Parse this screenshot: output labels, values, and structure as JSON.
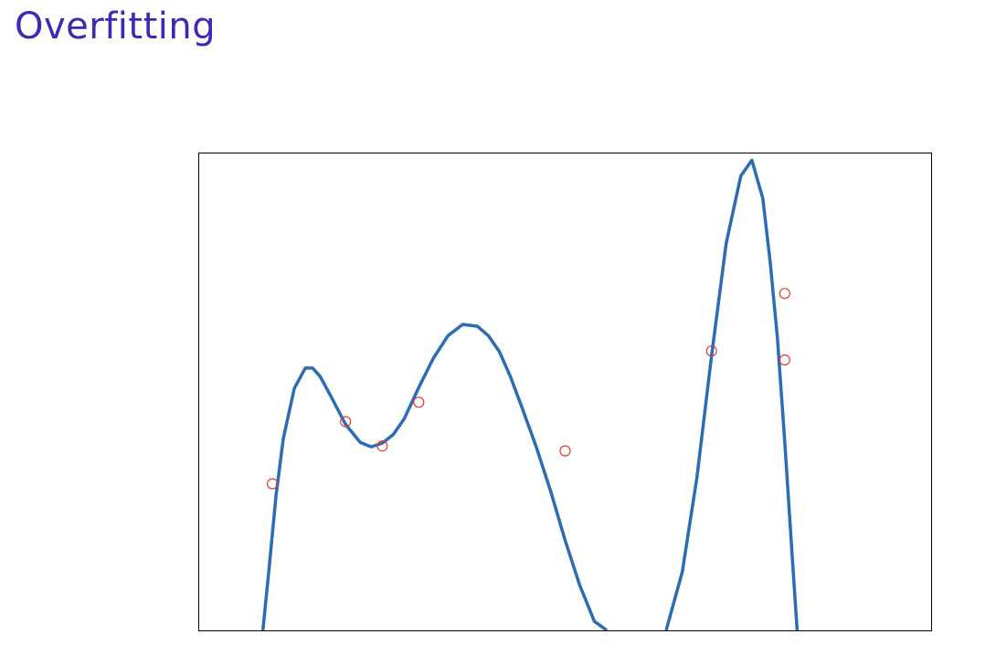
{
  "slide": {
    "title": "Overfitting",
    "title_color": "#3b2ab3"
  },
  "chart_data": {
    "type": "scatter",
    "xlim": [
      0,
      10
    ],
    "ylim": [
      -2.5,
      8.1
    ],
    "grid": false,
    "show_ticks": false,
    "points": [
      {
        "x": 1.0,
        "y": 0.76
      },
      {
        "x": 2.0,
        "y": 2.14
      },
      {
        "x": 2.5,
        "y": 1.6
      },
      {
        "x": 3.0,
        "y": 2.57
      },
      {
        "x": 5.0,
        "y": 1.49
      },
      {
        "x": 7.0,
        "y": 3.71
      },
      {
        "x": 8.0,
        "y": 4.99
      },
      {
        "x": 8.0,
        "y": 3.51
      }
    ],
    "fit_curve": {
      "x": [
        0.87,
        0.95,
        1.05,
        1.15,
        1.3,
        1.45,
        1.55,
        1.65,
        1.8,
        2.0,
        2.2,
        2.35,
        2.5,
        2.65,
        2.8,
        3.0,
        3.2,
        3.4,
        3.6,
        3.8,
        3.95,
        4.1,
        4.25,
        4.4,
        4.6,
        4.8,
        5.0,
        5.2,
        5.4,
        5.57,
        6.38,
        6.6,
        6.8,
        7.0,
        7.2,
        7.4,
        7.55,
        7.7,
        7.8,
        7.9,
        8.0,
        8.1,
        8.17
      ],
      "y": [
        -2.5,
        -1.2,
        0.5,
        1.77,
        2.88,
        3.33,
        3.33,
        3.15,
        2.7,
        2.08,
        1.68,
        1.58,
        1.66,
        1.85,
        2.2,
        2.9,
        3.55,
        4.05,
        4.3,
        4.26,
        4.05,
        3.7,
        3.15,
        2.5,
        1.6,
        0.6,
        -0.5,
        -1.5,
        -2.3,
        -2.5,
        -2.5,
        -1.2,
        0.9,
        3.6,
        6.1,
        7.6,
        7.95,
        7.1,
        5.7,
        4.0,
        1.7,
        -0.8,
        -2.5
      ]
    },
    "colors": {
      "curve": "#2b6db5",
      "points": "#e53935",
      "axes": "#000000"
    }
  }
}
